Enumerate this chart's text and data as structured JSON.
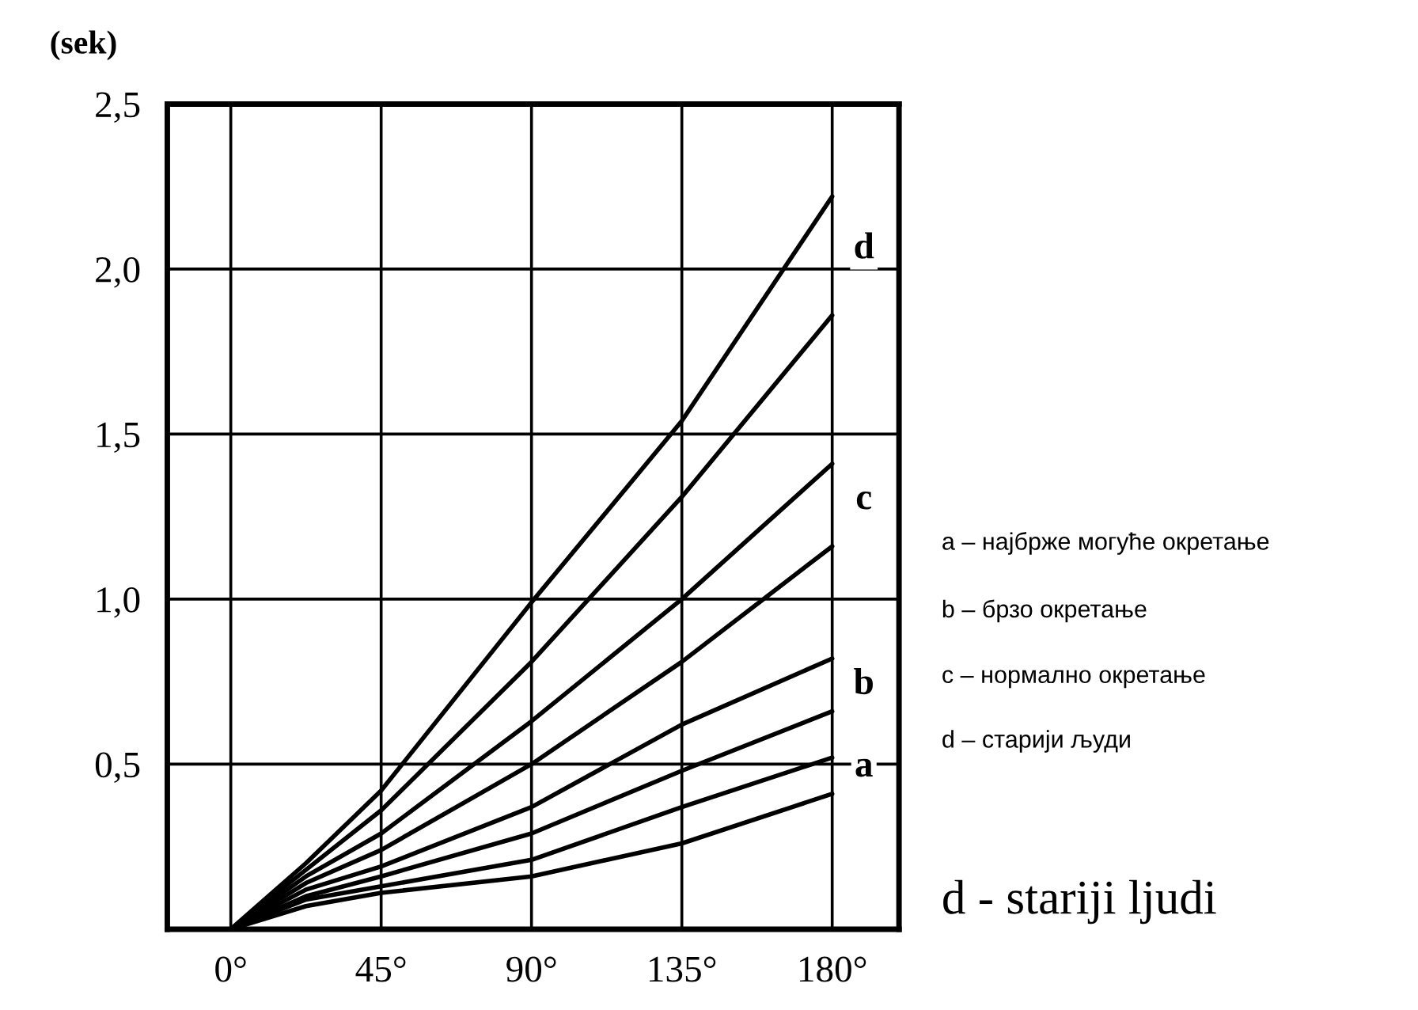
{
  "chart_data": {
    "type": "line",
    "ylabel": "(sek)",
    "x": [
      0,
      22.5,
      45,
      90,
      135,
      180
    ],
    "series": [
      {
        "color": "#000000",
        "values": [
          0,
          0.2,
          0.42,
          0.99,
          1.54,
          2.22
        ]
      },
      {
        "color": "#000000",
        "values": [
          0,
          0.18,
          0.36,
          0.81,
          1.31,
          1.86
        ]
      },
      {
        "color": "#000000",
        "values": [
          0,
          0.16,
          0.29,
          0.63,
          1.0,
          1.41
        ]
      },
      {
        "color": "#000000",
        "values": [
          0,
          0.14,
          0.24,
          0.5,
          0.81,
          1.16
        ]
      },
      {
        "color": "#000000",
        "values": [
          0,
          0.12,
          0.19,
          0.37,
          0.62,
          0.82
        ]
      },
      {
        "color": "#000000",
        "values": [
          0,
          0.1,
          0.16,
          0.29,
          0.48,
          0.66
        ]
      },
      {
        "color": "#000000",
        "values": [
          0,
          0.09,
          0.13,
          0.21,
          0.37,
          0.52
        ]
      },
      {
        "color": "#000000",
        "values": [
          0,
          0.07,
          0.11,
          0.16,
          0.26,
          0.41
        ]
      }
    ],
    "xlim": [
      -19,
      200
    ],
    "ylim": [
      0,
      2.5
    ],
    "xticks": [
      {
        "value": 0,
        "label": "0°"
      },
      {
        "value": 45,
        "label": "45°"
      },
      {
        "value": 90,
        "label": "90°"
      },
      {
        "value": 135,
        "label": "135°"
      },
      {
        "value": 180,
        "label": "180°"
      }
    ],
    "yticks": [
      {
        "value": 0,
        "label": null
      },
      {
        "value": 0.5,
        "label": "0,5"
      },
      {
        "value": 1.0,
        "label": "1,0"
      },
      {
        "value": 1.5,
        "label": "1,5"
      },
      {
        "value": 2.0,
        "label": "2,0"
      },
      {
        "value": 2.5,
        "label": "2,5"
      }
    ],
    "grid": true,
    "marker": "none",
    "line_style": "solid",
    "legend": false,
    "annotations": [
      "d",
      "c",
      "b",
      "a",
      "a – најбрже могуће окретање",
      "b – брзо окретање",
      "c – нормално окретање",
      "d – старији људи",
      "d - stariji ljudi"
    ]
  }
}
